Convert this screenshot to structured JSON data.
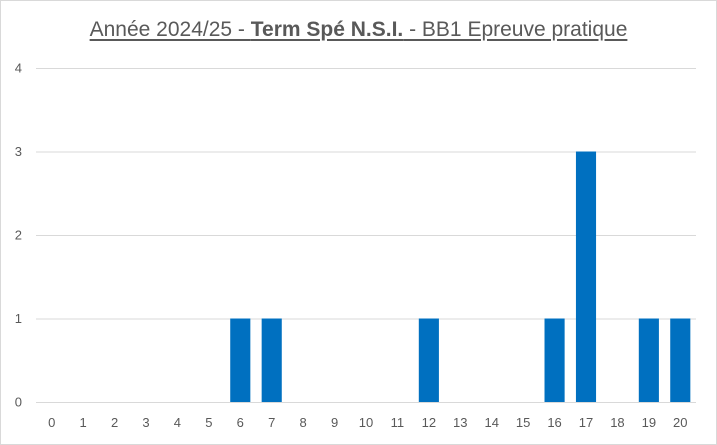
{
  "chart_data": {
    "type": "bar",
    "title": {
      "part1": "Année 2024/25 - ",
      "part2": "Term Spé N.S.I.",
      "part3": " - BB1 Epreuve pratique"
    },
    "xlabel": "",
    "ylabel": "",
    "categories": [
      "0",
      "1",
      "2",
      "3",
      "4",
      "5",
      "6",
      "7",
      "8",
      "9",
      "10",
      "11",
      "12",
      "13",
      "14",
      "15",
      "16",
      "17",
      "18",
      "19",
      "20"
    ],
    "values": [
      0,
      0,
      0,
      0,
      0,
      0,
      1,
      1,
      0,
      0,
      0,
      0,
      1,
      0,
      0,
      0,
      1,
      3,
      0,
      1,
      1
    ],
    "ylim": [
      0,
      4
    ],
    "yticks": [
      "0",
      "1",
      "2",
      "3",
      "4"
    ],
    "grid": true,
    "legend": "none",
    "bar_color": "#0070c0",
    "grid_color": "#d9d9d9"
  }
}
